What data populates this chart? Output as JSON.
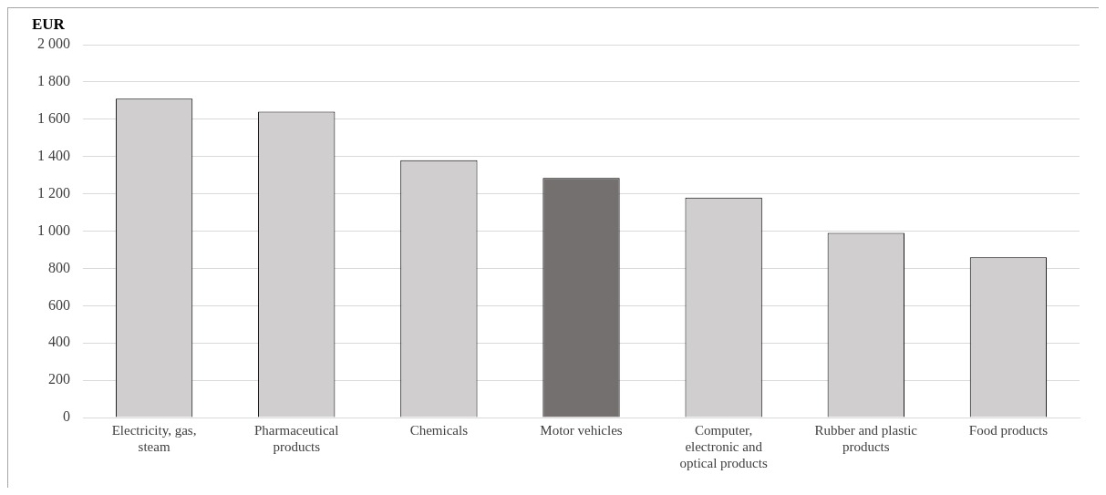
{
  "chart_data": {
    "type": "bar",
    "ylabel": "EUR",
    "categories": [
      "Electricity, gas, steam",
      "Pharmaceutical products",
      "Chemicals",
      "Motor vehicles",
      "Computer, electronic and optical products",
      "Rubber and plastic products",
      "Food products"
    ],
    "values": [
      1710,
      1640,
      1380,
      1285,
      1180,
      990,
      860
    ],
    "colors": [
      "#d0cece",
      "#d0cece",
      "#d0cece",
      "#757070",
      "#d0cece",
      "#d0cece",
      "#d0cece"
    ],
    "ylim": [
      0,
      2000
    ],
    "yticks": [
      {
        "value": 0,
        "label": "0"
      },
      {
        "value": 200,
        "label": "200"
      },
      {
        "value": 400,
        "label": "400"
      },
      {
        "value": 600,
        "label": "600"
      },
      {
        "value": 800,
        "label": "800"
      },
      {
        "value": 1000,
        "label": "1 000"
      },
      {
        "value": 1200,
        "label": "1 200"
      },
      {
        "value": 1400,
        "label": "1 400"
      },
      {
        "value": 1600,
        "label": "1 600"
      },
      {
        "value": 1800,
        "label": "1 800"
      },
      {
        "value": 2000,
        "label": "2 000"
      }
    ],
    "grid": "y",
    "legend": false
  }
}
